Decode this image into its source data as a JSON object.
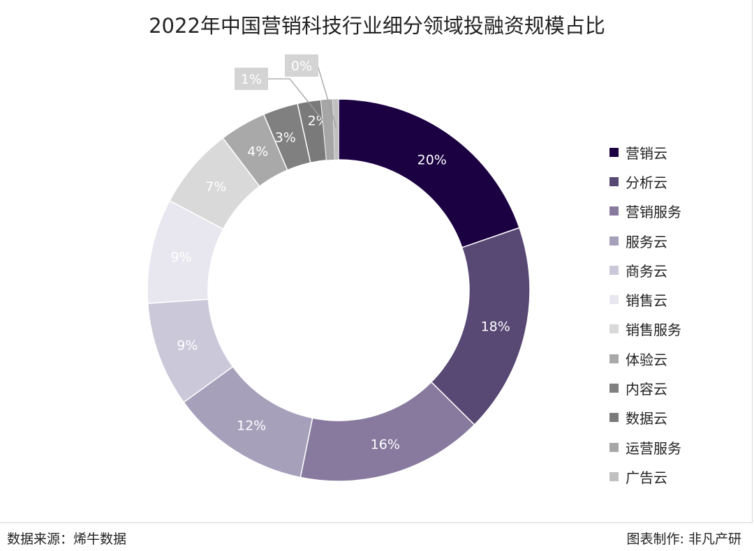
{
  "chart_data": {
    "type": "pie",
    "style": "donut",
    "title": "2022年中国营销科技行业细分领域投融资规模占比",
    "unit": "%",
    "legend_position": "right",
    "categories": [
      "营销云",
      "分析云",
      "营销服务",
      "服务云",
      "商务云",
      "销售云",
      "销售服务",
      "体验云",
      "内容云",
      "数据云",
      "运营服务",
      "广告云"
    ],
    "values": [
      20,
      18,
      16,
      12,
      9,
      9,
      7,
      4,
      3,
      2,
      1,
      0
    ],
    "labels": [
      "20%",
      "18%",
      "16%",
      "12%",
      "9%",
      "9%",
      "7%",
      "4%",
      "3%",
      "2%",
      "1%",
      "0%"
    ],
    "colors": [
      "#1b0042",
      "#574874",
      "#877a9e",
      "#a7a0bb",
      "#cbc8d9",
      "#e8e7ef",
      "#d9d9d9",
      "#a9a9a9",
      "#808080",
      "#7a7a7a",
      "#a6a6a6",
      "#c0c0c0"
    ]
  },
  "footer": {
    "source": "数据来源：烯牛数据",
    "credit": "图表制作: 非凡产研"
  }
}
